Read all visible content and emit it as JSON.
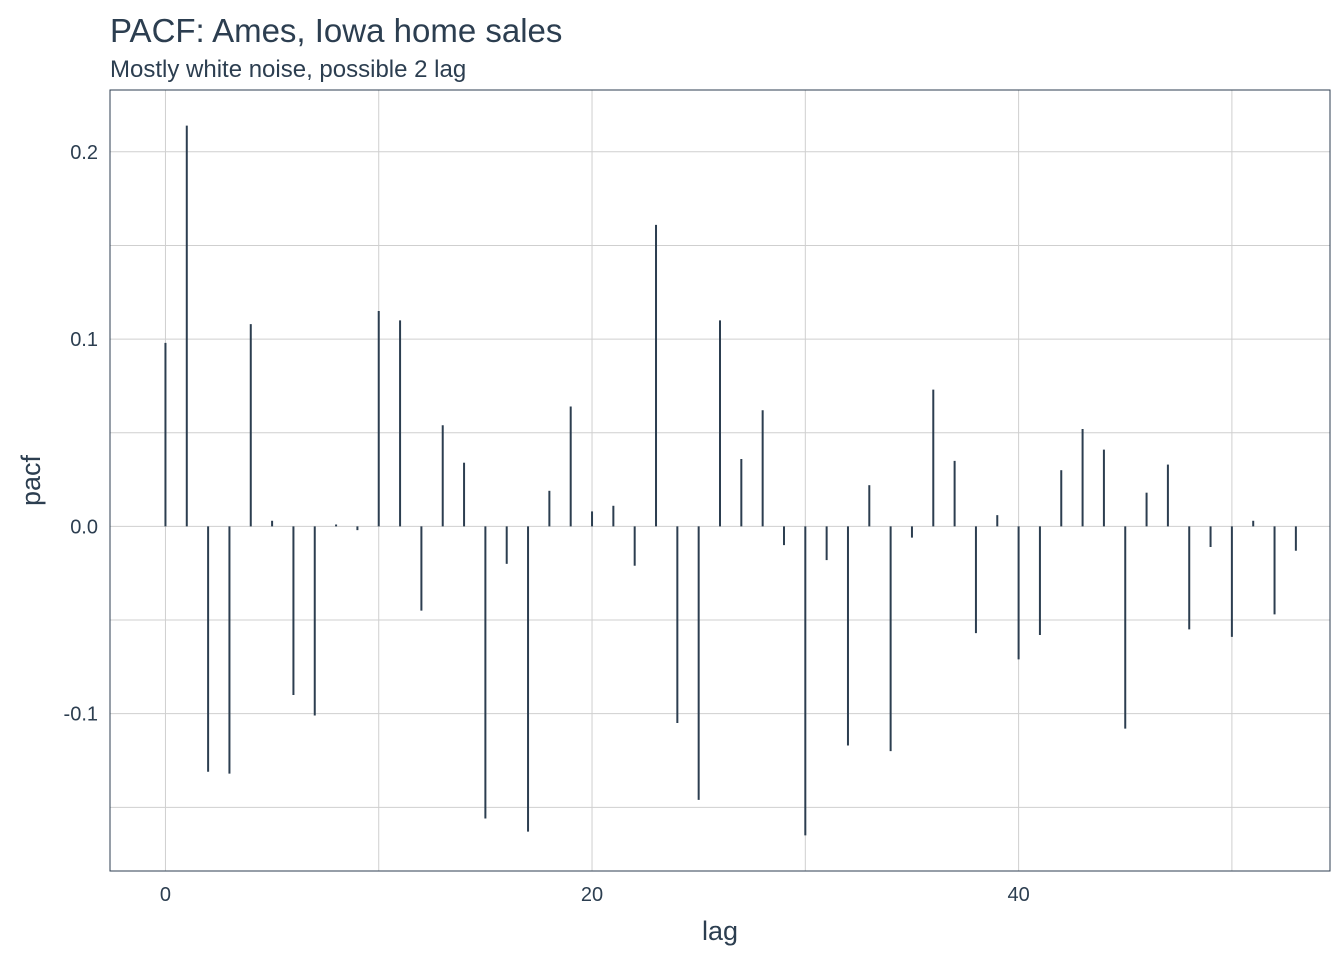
{
  "chart_data": {
    "type": "bar",
    "title": "PACF: Ames, Iowa home sales",
    "subtitle": "Mostly white noise, possible 2 lag",
    "xlabel": "lag",
    "ylabel": "pacf",
    "xlim": [
      -2.6,
      54.6
    ],
    "ylim": [
      -0.184,
      0.233
    ],
    "x_ticks": [
      0,
      20,
      40
    ],
    "x_tick_labels": [
      "0",
      "20",
      "40"
    ],
    "y_ticks": [
      -0.1,
      0.0,
      0.1,
      0.2
    ],
    "y_tick_labels": [
      "-0.1",
      "0.0",
      "0.1",
      "0.2"
    ],
    "grid": true,
    "series": [
      {
        "color": "#2c3e50",
        "x": [
          0,
          1,
          2,
          3,
          4,
          5,
          6,
          7,
          8,
          9,
          10,
          11,
          12,
          13,
          14,
          15,
          16,
          17,
          18,
          19,
          20,
          21,
          22,
          23,
          24,
          25,
          26,
          27,
          28,
          29,
          30,
          31,
          32,
          33,
          34,
          35,
          36,
          37,
          38,
          39,
          40,
          41,
          42,
          43,
          44,
          45,
          46,
          47,
          48,
          49,
          50,
          51,
          52,
          53
        ],
        "values": [
          0.098,
          0.214,
          -0.131,
          -0.132,
          0.108,
          0.003,
          -0.09,
          -0.101,
          0.001,
          -0.002,
          0.115,
          0.11,
          -0.045,
          0.054,
          0.034,
          -0.156,
          -0.02,
          -0.163,
          0.019,
          0.064,
          0.008,
          0.011,
          -0.021,
          0.161,
          -0.105,
          -0.146,
          0.11,
          0.036,
          0.062,
          -0.01,
          -0.165,
          -0.018,
          -0.117,
          0.022,
          -0.12,
          -0.006,
          0.073,
          0.035,
          -0.057,
          0.006,
          -0.071,
          -0.058,
          0.03,
          0.052,
          0.041,
          -0.108,
          0.018,
          0.033,
          -0.055,
          -0.011,
          -0.059,
          0.003,
          -0.047,
          -0.013
        ]
      }
    ]
  }
}
